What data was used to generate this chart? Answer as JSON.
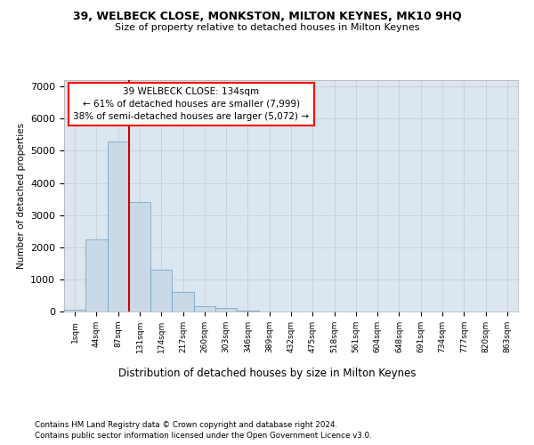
{
  "title_line1": "39, WELBECK CLOSE, MONKSTON, MILTON KEYNES, MK10 9HQ",
  "title_line2": "Size of property relative to detached houses in Milton Keynes",
  "xlabel": "Distribution of detached houses by size in Milton Keynes",
  "ylabel": "Number of detached properties",
  "footnote1": "Contains HM Land Registry data © Crown copyright and database right 2024.",
  "footnote2": "Contains public sector information licensed under the Open Government Licence v3.0.",
  "annotation_title": "39 WELBECK CLOSE: 134sqm",
  "annotation_line1": "← 61% of detached houses are smaller (7,999)",
  "annotation_line2": "38% of semi-detached houses are larger (5,072) →",
  "bar_color": "#c9d9e8",
  "bar_edge_color": "#6a9cc0",
  "grid_color": "#bfcad8",
  "vline_color": "#cc0000",
  "bg_color": "#dce6f0",
  "categories": [
    "1sqm",
    "44sqm",
    "87sqm",
    "131sqm",
    "174sqm",
    "217sqm",
    "260sqm",
    "303sqm",
    "346sqm",
    "389sqm",
    "432sqm",
    "475sqm",
    "518sqm",
    "561sqm",
    "604sqm",
    "648sqm",
    "691sqm",
    "734sqm",
    "777sqm",
    "820sqm",
    "863sqm"
  ],
  "values": [
    50,
    2250,
    5300,
    3400,
    1300,
    600,
    155,
    105,
    40,
    5,
    0,
    0,
    0,
    0,
    0,
    0,
    0,
    0,
    0,
    0,
    0
  ],
  "vline_bin_index": 3,
  "ylim": [
    0,
    7200
  ],
  "yticks": [
    0,
    1000,
    2000,
    3000,
    4000,
    5000,
    6000,
    7000
  ]
}
